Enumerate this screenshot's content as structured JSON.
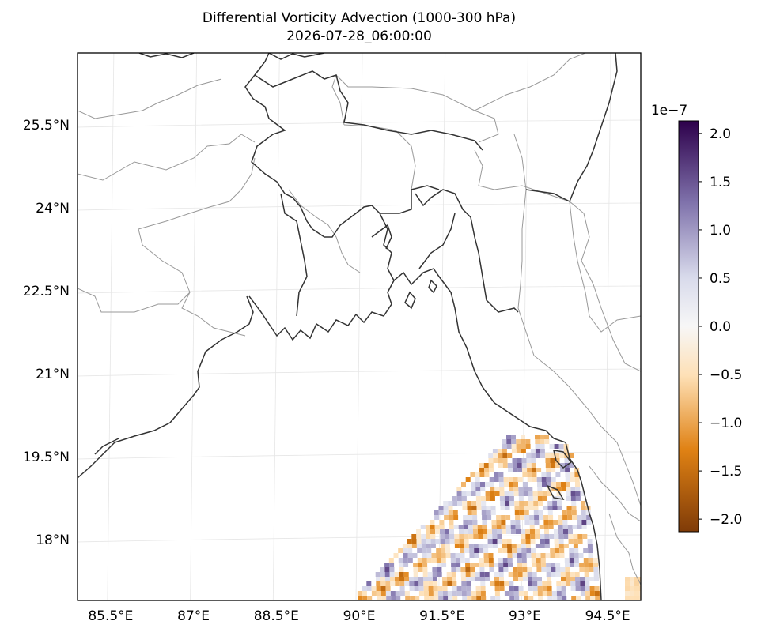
{
  "title": {
    "line1": "Differential Vorticity Advection (1000-300 hPa)",
    "line2": "2026-07-28_06:00:00"
  },
  "map": {
    "lon_range": [
      84.9,
      95.1
    ],
    "lat_range": [
      16.9,
      26.8
    ],
    "lon_ticks": [
      "85.5°E",
      "87°E",
      "88.5°E",
      "90°E",
      "91.5°E",
      "93°E",
      "94.5°E"
    ],
    "lat_ticks": [
      "25.5°N",
      "24°N",
      "22.5°N",
      "21°N",
      "19.5°N",
      "18°N"
    ],
    "gridlines": true,
    "coastline_color": "#333333",
    "border_color": "#999999",
    "field_data_region": "Bay of Bengal, south-east corner of domain"
  },
  "colorbar": {
    "colormap": "PuOr",
    "exponent_label": "1e−7",
    "min": -2.13,
    "max": 2.13,
    "tick_labels": [
      "2.0",
      "1.5",
      "1.0",
      "0.5",
      "0.0",
      "−0.5",
      "−1.0",
      "−1.5",
      "−2.0"
    ],
    "tick_values": [
      2.0,
      1.5,
      1.0,
      0.5,
      0.0,
      -0.5,
      -1.0,
      -1.5,
      -2.0
    ],
    "colors": {
      "max": "#2d004b",
      "upper": "#8073ac",
      "mid_up": "#d8daeb",
      "zero": "#f7f7f7",
      "mid_low": "#fee0b6",
      "lower": "#e08214",
      "min": "#7f3b08"
    }
  }
}
